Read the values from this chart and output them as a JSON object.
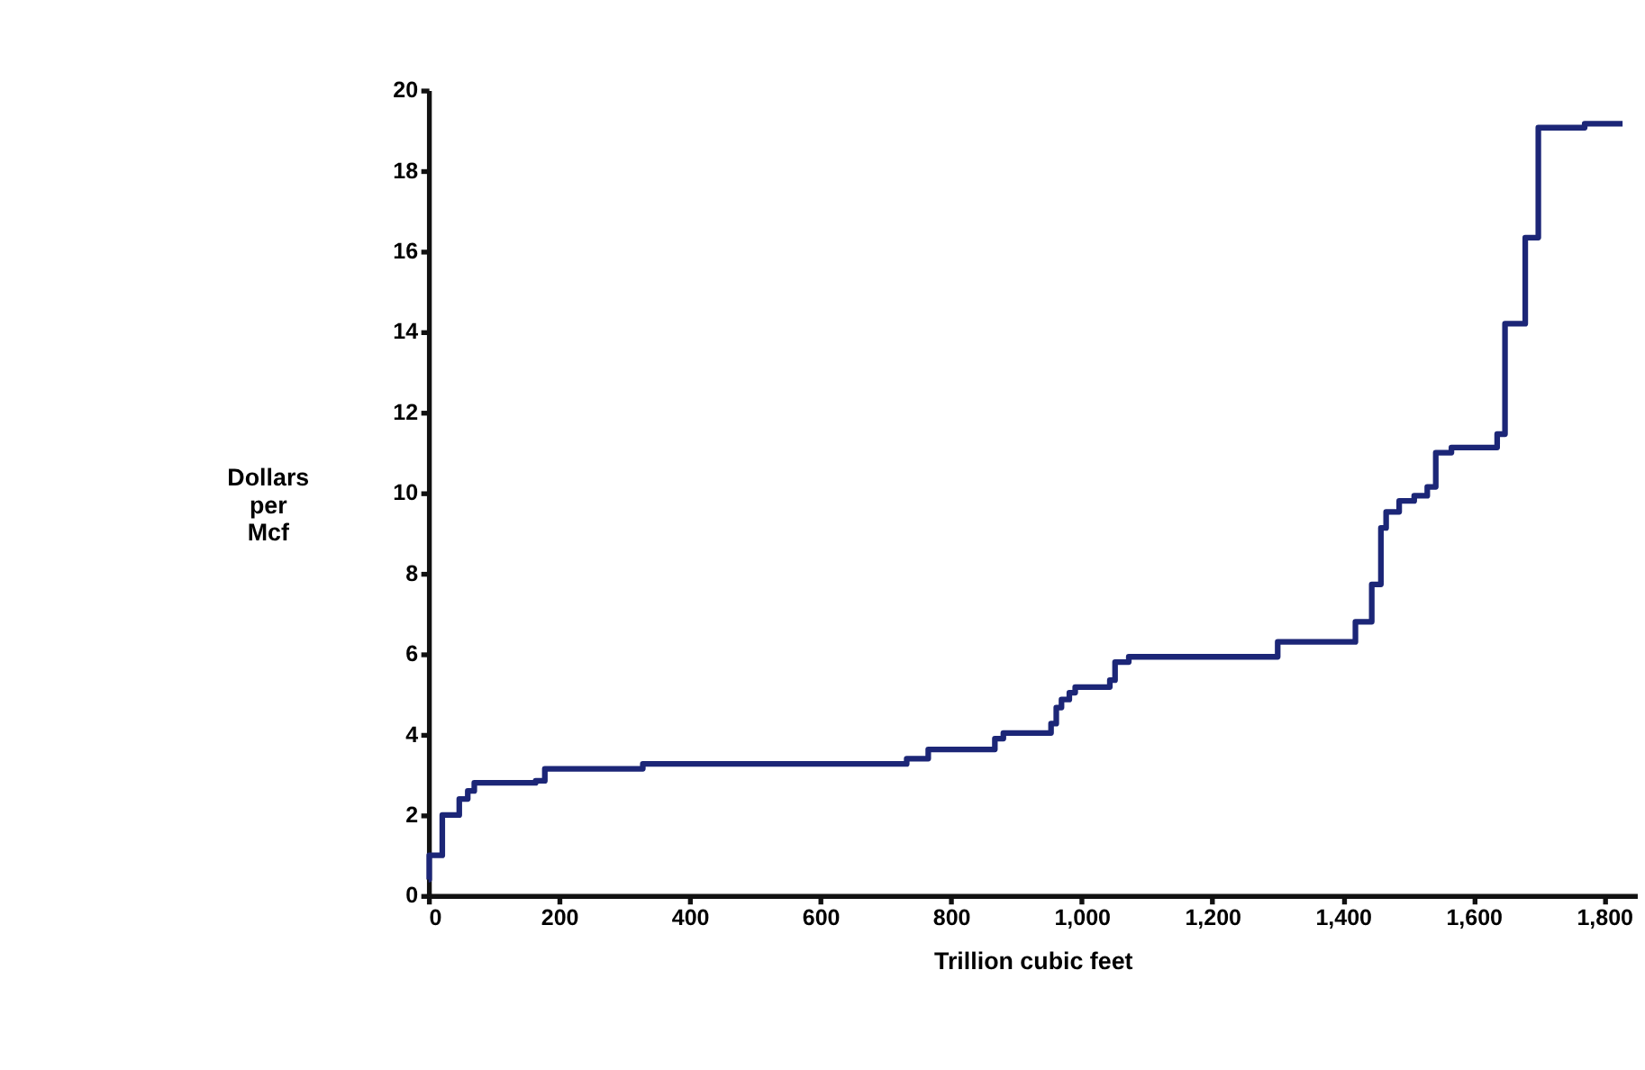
{
  "chart_data": {
    "type": "step",
    "xlabel": "Trillion cubic feet",
    "ylabel": "Dollars per Mcf",
    "x": [
      0,
      1,
      21,
      47,
      60,
      70,
      164,
      178,
      328,
      732,
      765,
      867,
      880,
      953,
      961,
      969,
      981,
      990,
      1043,
      1051,
      1072,
      1300,
      1419,
      1444,
      1458,
      1466,
      1486,
      1509,
      1529,
      1542,
      1566,
      1636,
      1648,
      1679,
      1699,
      1770,
      1828
    ],
    "series": [
      {
        "color": "#1c2677",
        "values": [
          0.4,
          1.0,
          2.0,
          2.4,
          2.6,
          2.8,
          2.85,
          3.15,
          3.27,
          3.4,
          3.63,
          3.9,
          4.04,
          4.27,
          4.67,
          4.87,
          5.04,
          5.18,
          5.35,
          5.8,
          5.93,
          6.3,
          6.8,
          7.73,
          9.13,
          9.53,
          9.8,
          9.93,
          10.15,
          11.0,
          11.13,
          11.46,
          14.2,
          16.34,
          19.07,
          19.17,
          19.17
        ]
      }
    ],
    "xlim": [
      0,
      1850
    ],
    "ylim": [
      0,
      20
    ],
    "xticks": [
      0,
      200,
      400,
      600,
      800,
      {
        "value": 1000,
        "label": "1,000"
      },
      {
        "value": 1200,
        "label": "1,200"
      },
      {
        "value": 1400,
        "label": "1,400"
      },
      {
        "value": 1600,
        "label": "1,600"
      },
      {
        "value": 1800,
        "label": "1,800"
      }
    ],
    "yticks": [
      0,
      2,
      4,
      6,
      8,
      10,
      12,
      14,
      16,
      18,
      20
    ],
    "grid": false,
    "legend": false
  }
}
